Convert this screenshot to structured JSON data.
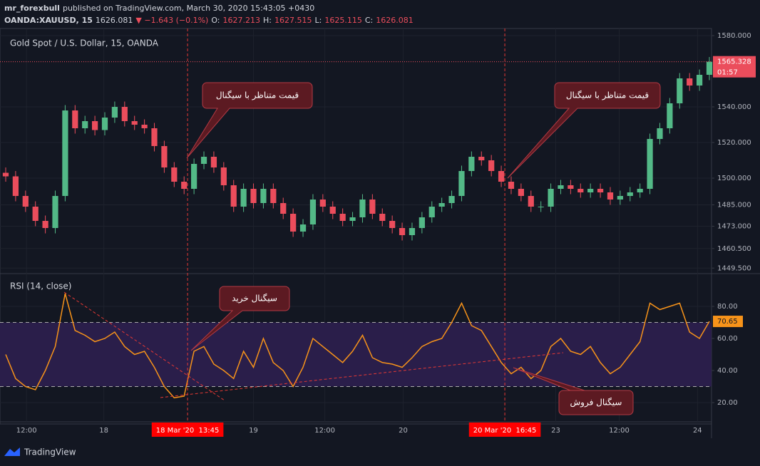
{
  "header": {
    "user": "mr_forexbull",
    "published": "published on TradingView.com, March 30, 2020 15:43:05 +0430",
    "symbol": "OANDA:XAUUSD, 15",
    "last": "1626.081",
    "change": "▼ −1.643 (−0.1%)",
    "o_label": "O:",
    "o": "1627.213",
    "h_label": "H:",
    "h": "1627.515",
    "l_label": "L:",
    "l": "1625.115",
    "c_label": "C:",
    "c": "1626.081"
  },
  "chart_data": [
    {
      "type": "candlestick",
      "title": "Gold Spot / U.S. Dollar, 15, OANDA",
      "up_color": "#53b987",
      "down_color": "#eb4d5c",
      "ylim": [
        1446.8,
        1584
      ],
      "yticks": [
        {
          "value": 1580,
          "label": "1580.000"
        },
        {
          "value": 1540,
          "label": "1540.000"
        },
        {
          "value": 1520,
          "label": "1520.000"
        },
        {
          "value": 1500,
          "label": "1500.000"
        },
        {
          "value": 1485,
          "label": "1485.000"
        },
        {
          "value": 1473,
          "label": "1473.000"
        },
        {
          "value": 1460.5,
          "label": "1460.500"
        },
        {
          "value": 1449.5,
          "label": "1449.500"
        }
      ],
      "last_price": 1565.328,
      "last_price_label": "1565.328",
      "countdown": "01:57",
      "ohlc": [
        [
          1503,
          1506,
          1498,
          1501
        ],
        [
          1501,
          1504,
          1487,
          1490
        ],
        [
          1490,
          1493,
          1481,
          1484
        ],
        [
          1484,
          1487,
          1473,
          1476
        ],
        [
          1476,
          1479,
          1469,
          1472
        ],
        [
          1472,
          1493,
          1469,
          1490
        ],
        [
          1490,
          1541,
          1487,
          1538
        ],
        [
          1538,
          1541,
          1525,
          1528
        ],
        [
          1528,
          1535,
          1525,
          1532
        ],
        [
          1532,
          1535,
          1524,
          1527
        ],
        [
          1527,
          1537,
          1524,
          1534
        ],
        [
          1534,
          1543,
          1531,
          1540
        ],
        [
          1540,
          1543,
          1529,
          1532
        ],
        [
          1532,
          1535,
          1527,
          1530
        ],
        [
          1530,
          1533,
          1525,
          1528
        ],
        [
          1528,
          1531,
          1515,
          1518
        ],
        [
          1518,
          1521,
          1503,
          1506
        ],
        [
          1506,
          1509,
          1495,
          1498
        ],
        [
          1498,
          1501,
          1491,
          1494
        ],
        [
          1494,
          1511,
          1491,
          1508
        ],
        [
          1508,
          1515,
          1505,
          1512
        ],
        [
          1512,
          1515,
          1503,
          1506
        ],
        [
          1506,
          1509,
          1493,
          1496
        ],
        [
          1496,
          1499,
          1481,
          1484
        ],
        [
          1484,
          1497,
          1481,
          1494
        ],
        [
          1494,
          1497,
          1483,
          1486
        ],
        [
          1486,
          1497,
          1483,
          1494
        ],
        [
          1494,
          1497,
          1483,
          1486
        ],
        [
          1486,
          1489,
          1477,
          1480
        ],
        [
          1480,
          1483,
          1467,
          1470
        ],
        [
          1470,
          1477,
          1467,
          1474
        ],
        [
          1474,
          1491,
          1471,
          1488
        ],
        [
          1488,
          1491,
          1481,
          1484
        ],
        [
          1484,
          1487,
          1477,
          1480
        ],
        [
          1480,
          1483,
          1473,
          1476
        ],
        [
          1476,
          1481,
          1473,
          1478
        ],
        [
          1478,
          1491,
          1475,
          1488
        ],
        [
          1488,
          1491,
          1477,
          1480
        ],
        [
          1480,
          1483,
          1473,
          1476
        ],
        [
          1476,
          1479,
          1469,
          1472
        ],
        [
          1472,
          1475,
          1465,
          1468
        ],
        [
          1468,
          1475,
          1465,
          1472
        ],
        [
          1472,
          1481,
          1469,
          1478
        ],
        [
          1478,
          1487,
          1475,
          1484
        ],
        [
          1484,
          1489,
          1481,
          1486
        ],
        [
          1486,
          1493,
          1483,
          1490
        ],
        [
          1490,
          1507,
          1487,
          1504
        ],
        [
          1504,
          1515,
          1501,
          1512
        ],
        [
          1512,
          1515,
          1507,
          1510
        ],
        [
          1510,
          1513,
          1501,
          1504
        ],
        [
          1504,
          1507,
          1495,
          1498
        ],
        [
          1498,
          1501,
          1491,
          1494
        ],
        [
          1494,
          1497,
          1487,
          1490
        ],
        [
          1490,
          1493,
          1481,
          1484
        ],
        [
          1484,
          1487,
          1481,
          1484
        ],
        [
          1484,
          1497,
          1481,
          1494
        ],
        [
          1494,
          1499,
          1491,
          1496
        ],
        [
          1496,
          1499,
          1491,
          1494
        ],
        [
          1494,
          1497,
          1489,
          1492
        ],
        [
          1492,
          1497,
          1489,
          1494
        ],
        [
          1494,
          1497,
          1489,
          1492
        ],
        [
          1492,
          1495,
          1485,
          1488
        ],
        [
          1488,
          1493,
          1485,
          1490
        ],
        [
          1490,
          1495,
          1487,
          1492
        ],
        [
          1492,
          1497,
          1489,
          1494
        ],
        [
          1494,
          1525,
          1491,
          1522
        ],
        [
          1522,
          1531,
          1519,
          1528
        ],
        [
          1528,
          1545,
          1525,
          1542
        ],
        [
          1542,
          1559,
          1539,
          1556
        ],
        [
          1556,
          1559,
          1549,
          1552
        ],
        [
          1552,
          1561,
          1549,
          1558
        ],
        [
          1558,
          1568,
          1555,
          1565.328
        ]
      ],
      "annotations": [
        "قیمت متناظر با سیگنال",
        "قیمت متناظر با سیگنال"
      ]
    },
    {
      "type": "line",
      "title": "RSI (14, close)",
      "color": "#f7931a",
      "band_color": "#2a1e4a",
      "ylim": [
        8.9,
        100
      ],
      "yticks": [
        {
          "value": 80,
          "label": "80.00"
        },
        {
          "value": 60,
          "label": "60.00"
        },
        {
          "value": 40,
          "label": "40.00"
        },
        {
          "value": 20,
          "label": "20.00"
        }
      ],
      "bands": [
        30,
        70
      ],
      "last_value_label": "70.65",
      "values": [
        50,
        35,
        30,
        28,
        40,
        55,
        88,
        65,
        62,
        58,
        60,
        64,
        55,
        50,
        52,
        42,
        30,
        23,
        24,
        52,
        55,
        44,
        40,
        35,
        52,
        42,
        60,
        45,
        40,
        30,
        42,
        60,
        55,
        50,
        45,
        52,
        62,
        48,
        45,
        44,
        42,
        48,
        55,
        58,
        60,
        70,
        82,
        68,
        65,
        55,
        45,
        38,
        42,
        35,
        40,
        55,
        60,
        52,
        50,
        55,
        45,
        38,
        42,
        50,
        58,
        82,
        78,
        80,
        82,
        64,
        60,
        70.65
      ],
      "xlim": [
        0,
        71
      ],
      "xticks": [
        {
          "value": 2.1,
          "label": "12:00"
        },
        {
          "value": 9.9,
          "label": "18"
        },
        {
          "value": 25,
          "label": "19"
        },
        {
          "value": 32.2,
          "label": "12:00"
        },
        {
          "value": 40.1,
          "label": "20"
        },
        {
          "value": 55.5,
          "label": "23"
        },
        {
          "value": 61.9,
          "label": "12:00"
        },
        {
          "value": 69.8,
          "label": "24"
        }
      ],
      "markers": [
        {
          "value": 18.35,
          "label": "18 Mar '20  13:45"
        },
        {
          "value": 50.36,
          "label": "20 Mar '20  16:45"
        }
      ],
      "annotations": [
        "سیگنال خرید",
        "سیگنال فروش"
      ]
    }
  ],
  "footer": {
    "brand": "TradingView"
  }
}
